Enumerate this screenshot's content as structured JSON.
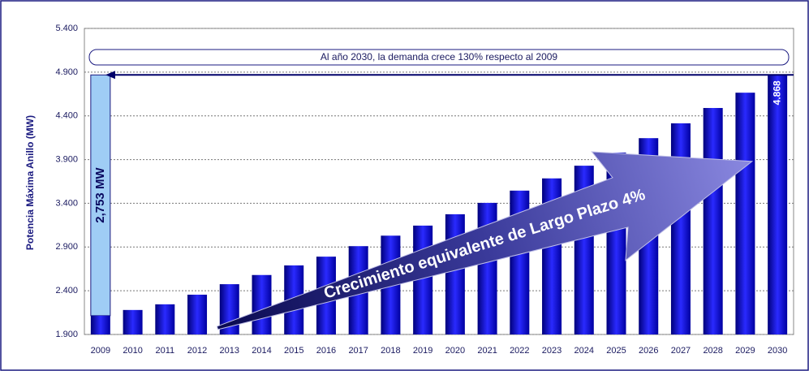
{
  "chart_data": {
    "type": "bar",
    "y_label": "Potencia Máxima Anillo (MW)",
    "categories": [
      "2009",
      "2010",
      "2011",
      "2012",
      "2013",
      "2014",
      "2015",
      "2016",
      "2017",
      "2018",
      "2019",
      "2020",
      "2021",
      "2022",
      "2023",
      "2024",
      "2025",
      "2026",
      "2027",
      "2028",
      "2029",
      "2030"
    ],
    "values": [
      2115,
      2180,
      2245,
      2355,
      2475,
      2580,
      2690,
      2790,
      2910,
      3030,
      3145,
      3275,
      3405,
      3545,
      3685,
      3830,
      3980,
      4145,
      4315,
      4490,
      4665,
      4868
    ],
    "value_labels": [
      null,
      null,
      null,
      null,
      null,
      null,
      null,
      null,
      null,
      null,
      null,
      null,
      null,
      null,
      null,
      null,
      null,
      null,
      null,
      null,
      null,
      "4.868"
    ],
    "color": "#1a1ad0",
    "ylim": [
      1900,
      5400
    ],
    "yticks": [
      {
        "value": 1900,
        "label": "1.900"
      },
      {
        "value": 2400,
        "label": "2.400"
      },
      {
        "value": 2900,
        "label": "2.900"
      },
      {
        "value": 3400,
        "label": "3.400"
      },
      {
        "value": 3900,
        "label": "3.900"
      },
      {
        "value": 4400,
        "label": "4.400"
      },
      {
        "value": 4900,
        "label": "4.900"
      },
      {
        "value": 5400,
        "label": "5.400"
      }
    ],
    "grid": true,
    "annotations": [
      {
        "text": "Al año 2030, la demanda crece 130% respecto al 2009"
      },
      {
        "text": "2,753 MW"
      },
      {
        "text": "Crecimiento equivalente de Largo Plazo 4%"
      }
    ]
  }
}
